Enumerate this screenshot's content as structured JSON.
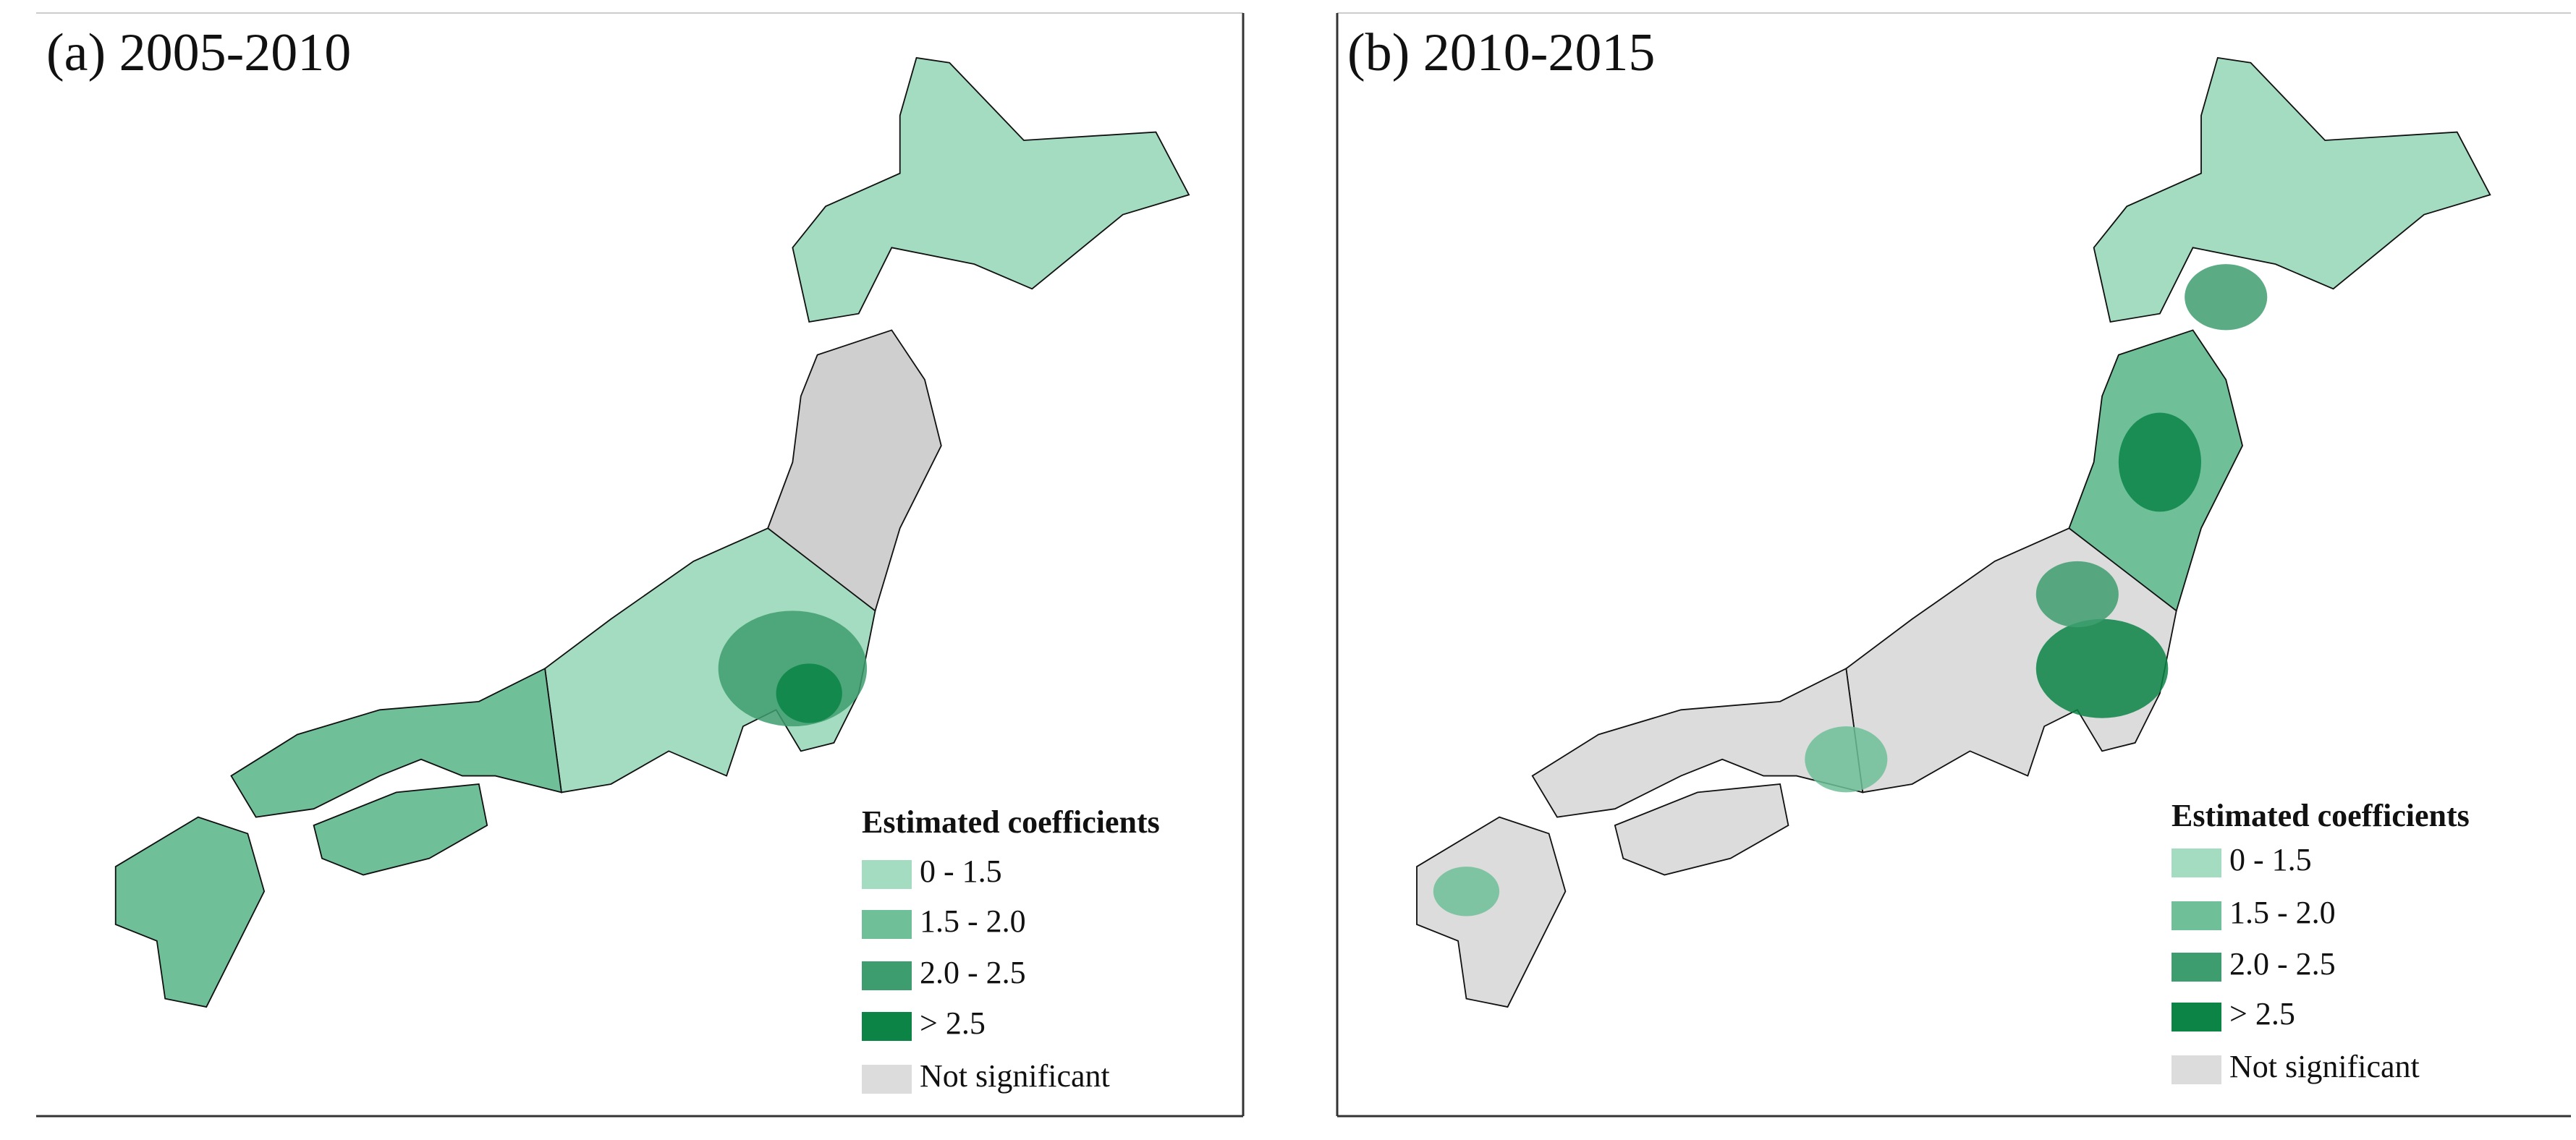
{
  "panels": [
    {
      "title": "(a) 2005-2010",
      "legend": {
        "title": "Estimated coefficients",
        "items": [
          {
            "label": "0 - 1.5",
            "color": "#a3dcc0"
          },
          {
            "label": "1.5 - 2.0",
            "color": "#6fbf98"
          },
          {
            "label": "2.0 - 2.5",
            "color": "#3e9d6e"
          },
          {
            "label": "> 2.5",
            "color": "#0b8446"
          },
          {
            "label": "Not significant",
            "color": "#dcdcdc"
          }
        ]
      }
    },
    {
      "title": "(b) 2010-2015",
      "legend": {
        "title": "Estimated coefficients",
        "items": [
          {
            "label": "0 - 1.5",
            "color": "#a3dcc0"
          },
          {
            "label": "1.5 - 2.0",
            "color": "#6fbf98"
          },
          {
            "label": "2.0 - 2.5",
            "color": "#3e9d6e"
          },
          {
            "label": "> 2.5",
            "color": "#0b8446"
          },
          {
            "label": "Not significant",
            "color": "#dcdcdc"
          }
        ]
      }
    }
  ]
}
